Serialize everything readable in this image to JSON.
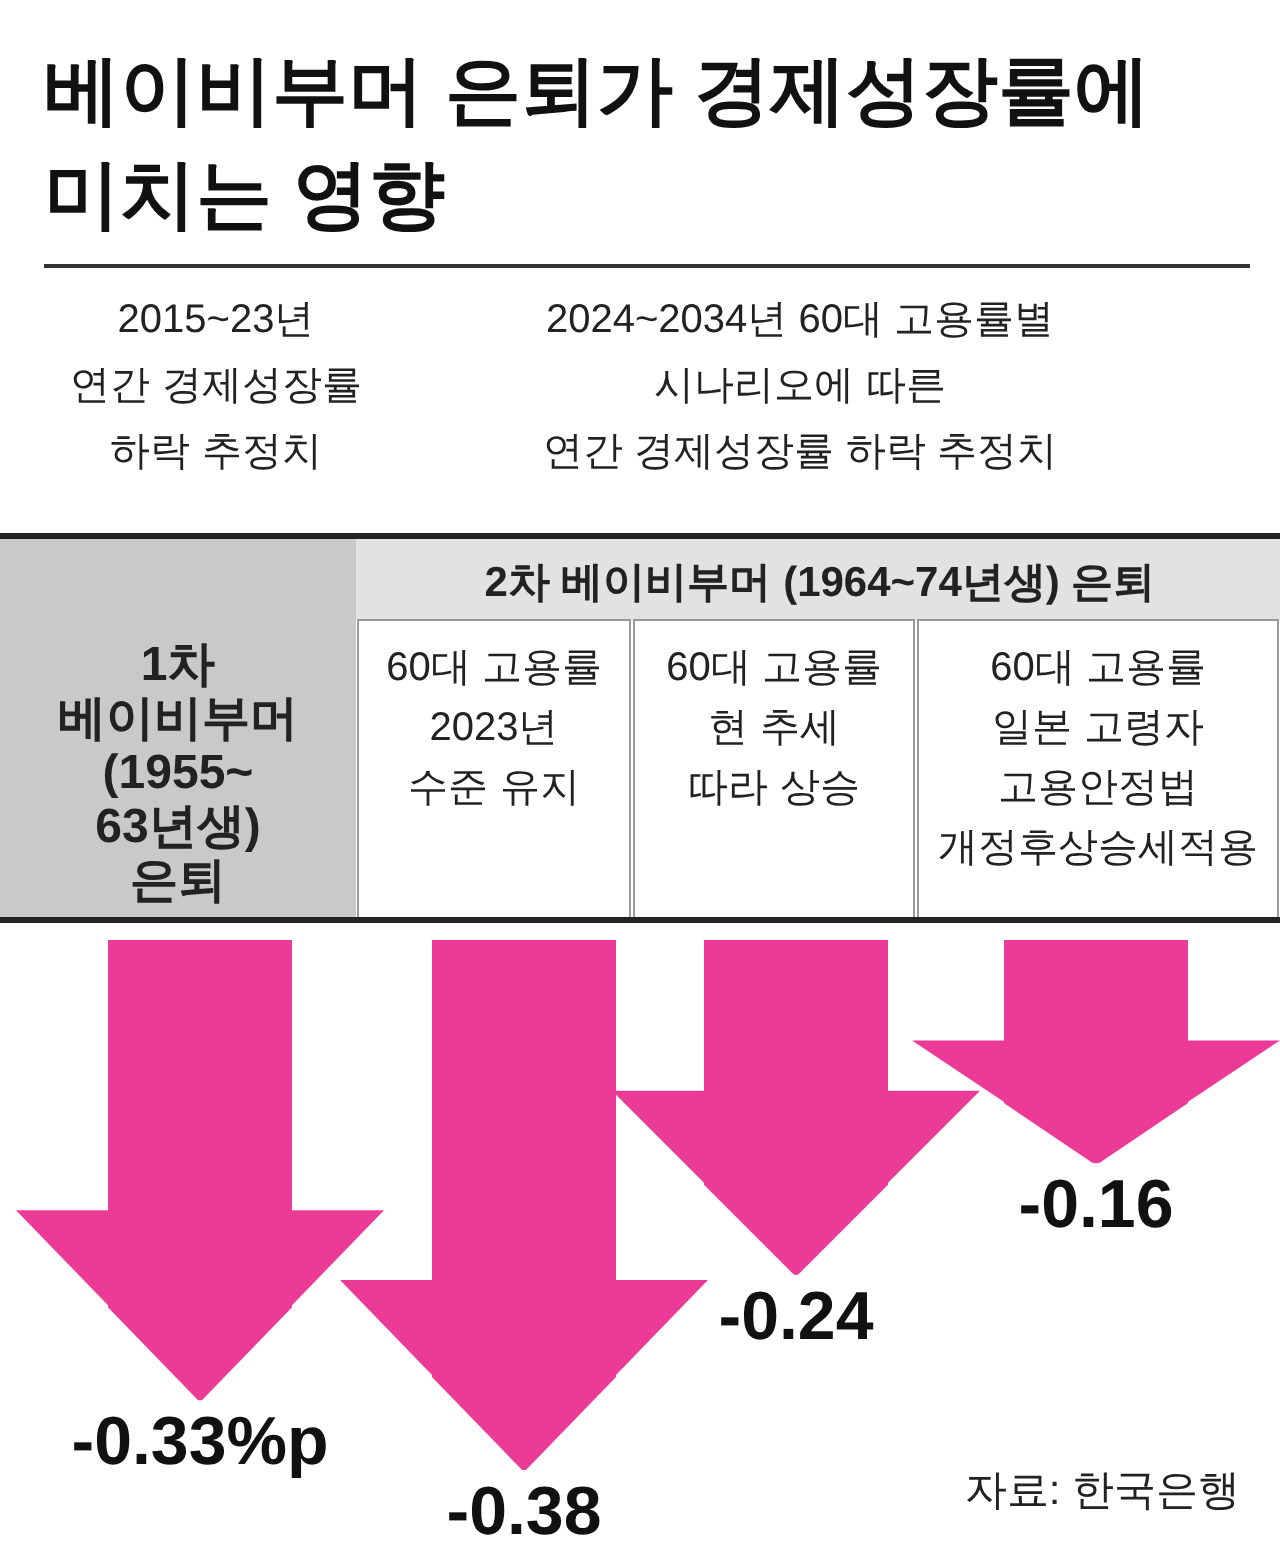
{
  "chart_data": {
    "type": "bar",
    "title": "베이비부머 은퇴가 경제성장률에\n미치는 영향",
    "categories": [
      "1차\n베이비부머\n(1955~\n63년생)\n은퇴",
      "60대 고용률\n2023년\n수준 유지",
      "60대 고용률\n현 추세\n따라 상승",
      "60대 고용률\n일본 고령자\n고용안정법\n개정후상승세적용"
    ],
    "values": [
      -0.33,
      -0.38,
      -0.24,
      -0.16
    ],
    "value_labels": [
      "-0.33%p",
      "-0.38",
      "-0.24",
      "-0.16"
    ],
    "color": "#ec3b96",
    "annotations": [
      "2차 베이비부머 (1964~74년생) 은퇴",
      "2015~23년\n연간 경제성장률\n하락 추정치",
      "2024~2034년 60대 고용률별\n시나리오에 따른\n연간 경제성장률 하락 추정치",
      "자료: 한국은행"
    ]
  }
}
